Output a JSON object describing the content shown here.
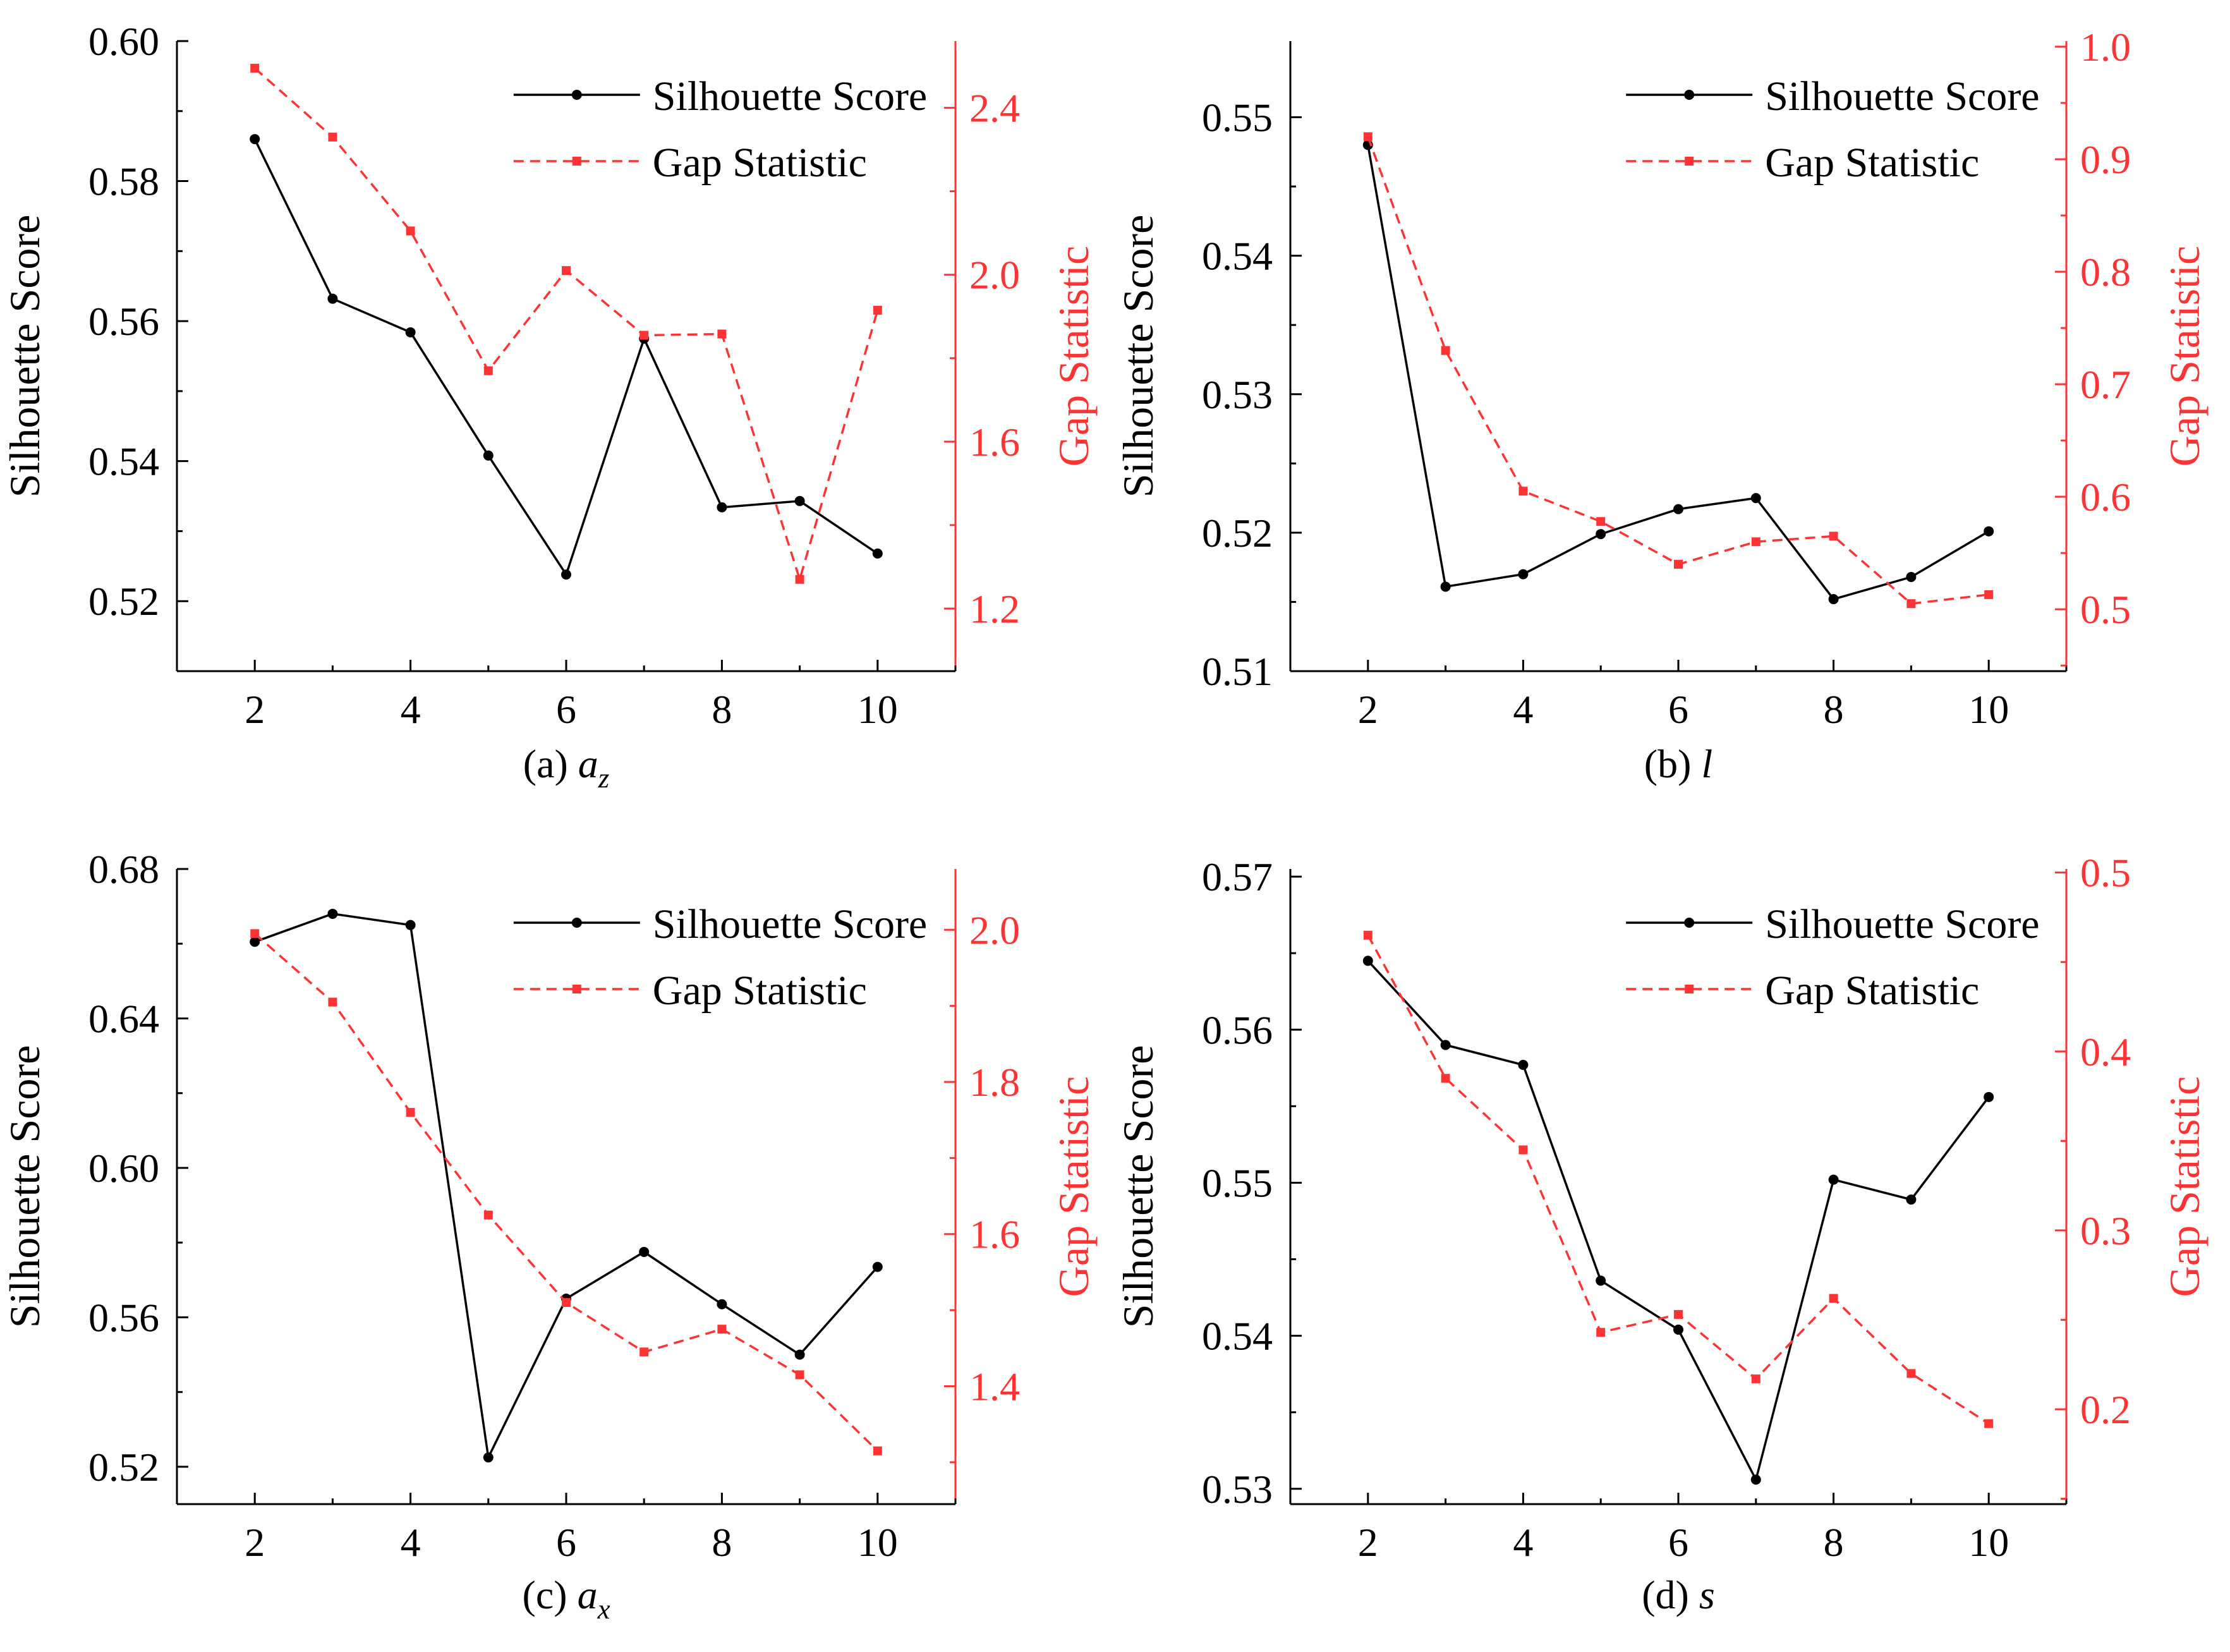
{
  "colors": {
    "silhouette": "#000000",
    "gap": "#ff3333",
    "axis": "#000000"
  },
  "chart_data": [
    {
      "type": "line",
      "caption": {
        "prefix": "(a) ",
        "var": "a",
        "sub": "z"
      },
      "x": [
        2,
        3,
        4,
        5,
        6,
        7,
        8,
        9,
        10
      ],
      "xlim": [
        1,
        11
      ],
      "xticks": [
        "2",
        "4",
        "6",
        "8",
        "10"
      ],
      "ylabel": "Silhouette Score",
      "ylim": [
        0.51,
        0.6
      ],
      "yticks": [
        "0.52",
        "0.54",
        "0.56",
        "0.58",
        "0.60"
      ],
      "y2label": "Gap Statistic",
      "y2lim": [
        1.05,
        2.56
      ],
      "y2ticks": [
        "1.2",
        "1.6",
        "2.0",
        "2.4"
      ],
      "legend_position": "top-right",
      "series": [
        {
          "name": "Silhouette Score",
          "axis": "left",
          "style": "solid-circle",
          "values": [
            0.586,
            0.5632,
            0.5584,
            0.5408,
            0.5238,
            0.5575,
            0.5334,
            0.5343,
            0.5268
          ]
        },
        {
          "name": "Gap Statistic",
          "axis": "right",
          "style": "dashed-square",
          "values": [
            2.495,
            2.33,
            2.105,
            1.77,
            2.01,
            1.855,
            1.858,
            1.27,
            1.915
          ]
        }
      ]
    },
    {
      "type": "line",
      "caption": {
        "prefix": "(b) ",
        "var": "l",
        "sub": ""
      },
      "x": [
        2,
        3,
        4,
        5,
        6,
        7,
        8,
        9,
        10
      ],
      "xlim": [
        1,
        11
      ],
      "xticks": [
        "2",
        "4",
        "6",
        "8",
        "10"
      ],
      "ylabel": "Silhouette Score",
      "ylim": [
        0.51,
        0.5555
      ],
      "yticks": [
        "0.51",
        "0.52",
        "0.53",
        "0.54",
        "0.55"
      ],
      "y2label": "Gap Statistic",
      "y2lim": [
        0.445,
        1.005
      ],
      "y2ticks": [
        "0.5",
        "0.6",
        "0.7",
        "0.8",
        "0.9",
        "1.0"
      ],
      "legend_position": "top-right",
      "series": [
        {
          "name": "Silhouette Score",
          "axis": "left",
          "style": "solid-circle",
          "values": [
            0.548,
            0.5161,
            0.517,
            0.5199,
            0.5217,
            0.5225,
            0.5152,
            0.5168,
            0.5201
          ]
        },
        {
          "name": "Gap Statistic",
          "axis": "right",
          "style": "dashed-square",
          "values": [
            0.92,
            0.73,
            0.605,
            0.578,
            0.54,
            0.56,
            0.565,
            0.505,
            0.513
          ]
        }
      ]
    },
    {
      "type": "line",
      "caption": {
        "prefix": "(c) ",
        "var": "a",
        "sub": "x"
      },
      "x": [
        2,
        3,
        4,
        5,
        6,
        7,
        8,
        9,
        10
      ],
      "xlim": [
        1,
        11
      ],
      "xticks": [
        "2",
        "4",
        "6",
        "8",
        "10"
      ],
      "ylabel": "Silhouette Score",
      "ylim": [
        0.51,
        0.68
      ],
      "yticks": [
        "0.52",
        "0.56",
        "0.60",
        "0.64",
        "0.68"
      ],
      "y2label": "Gap Statistic",
      "y2lim": [
        1.245,
        2.08
      ],
      "y2ticks": [
        "1.4",
        "1.6",
        "1.8",
        "2.0"
      ],
      "legend_position": "top-right",
      "series": [
        {
          "name": "Silhouette Score",
          "axis": "left",
          "style": "solid-circle",
          "values": [
            0.6605,
            0.668,
            0.665,
            0.5225,
            0.565,
            0.5775,
            0.5635,
            0.55,
            0.5735
          ]
        },
        {
          "name": "Gap Statistic",
          "axis": "right",
          "style": "dashed-square",
          "values": [
            1.995,
            1.905,
            1.76,
            1.625,
            1.51,
            1.445,
            1.475,
            1.415,
            1.315
          ]
        }
      ]
    },
    {
      "type": "line",
      "caption": {
        "prefix": "(d) ",
        "var": "s",
        "sub": ""
      },
      "x": [
        2,
        3,
        4,
        5,
        6,
        7,
        8,
        9,
        10
      ],
      "xlim": [
        1,
        11
      ],
      "xticks": [
        "2",
        "4",
        "6",
        "8",
        "10"
      ],
      "ylabel": "Silhouette Score",
      "ylim": [
        0.529,
        0.5705
      ],
      "yticks": [
        "0.53",
        "0.54",
        "0.55",
        "0.56",
        "0.57"
      ],
      "y2label": "Gap Statistic",
      "y2lim": [
        0.147,
        0.502
      ],
      "y2ticks": [
        "0.2",
        "0.3",
        "0.4",
        "0.5"
      ],
      "legend_position": "top-right",
      "series": [
        {
          "name": "Silhouette Score",
          "axis": "left",
          "style": "solid-circle",
          "values": [
            0.5645,
            0.559,
            0.5577,
            0.5436,
            0.5404,
            0.5306,
            0.5502,
            0.5489,
            0.5556
          ]
        },
        {
          "name": "Gap Statistic",
          "axis": "right",
          "style": "dashed-square",
          "values": [
            0.465,
            0.385,
            0.345,
            0.243,
            0.253,
            0.217,
            0.262,
            0.22,
            0.192
          ]
        }
      ]
    }
  ]
}
